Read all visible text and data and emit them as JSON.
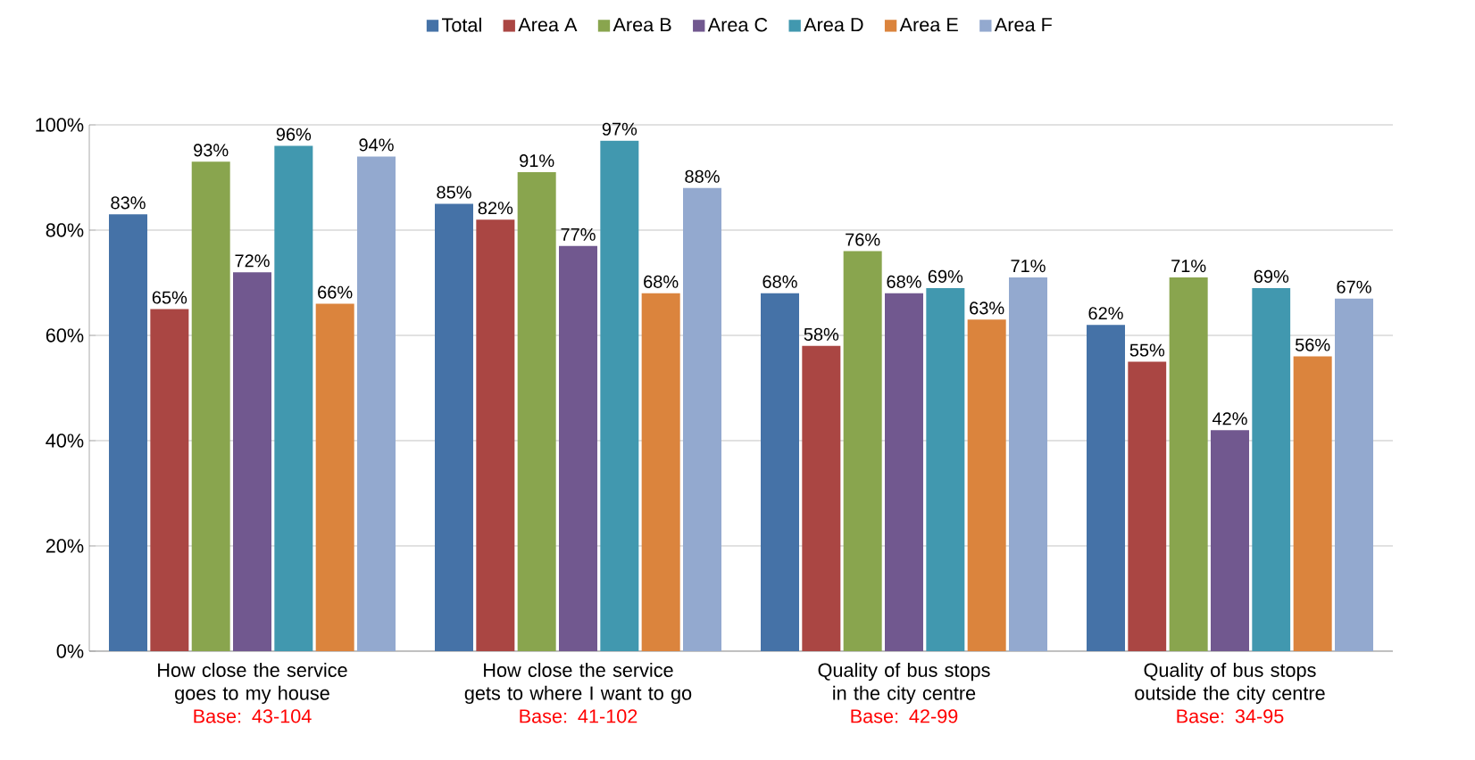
{
  "chart_data": {
    "type": "bar",
    "categories": [
      "How close the service goes to my house",
      "How close the service gets to where I want to go",
      "Quality of bus stops in the city centre",
      "Quality of bus stops outside the city centre"
    ],
    "annotations": [
      "Base: 43-104",
      "Base: 41-102",
      "Base: 42-99",
      "Base: 34-95"
    ],
    "series": [
      {
        "name": "Total",
        "color": "#4572a7",
        "values": [
          83,
          85,
          68,
          62
        ],
        "value_labels": [
          "83%",
          "85%",
          "68%",
          "62%"
        ]
      },
      {
        "name": "Area A",
        "color": "#aa4643",
        "values": [
          65,
          82,
          58,
          55
        ],
        "value_labels": [
          "65%",
          "82%",
          "58%",
          "55%"
        ]
      },
      {
        "name": "Area B",
        "color": "#89a54e",
        "values": [
          93,
          91,
          76,
          71
        ],
        "value_labels": [
          "93%",
          "91%",
          "76%",
          "71%"
        ]
      },
      {
        "name": "Area C",
        "color": "#71588f",
        "values": [
          72,
          77,
          68,
          42
        ],
        "value_labels": [
          "72%",
          "77%",
          "68%",
          "42%"
        ]
      },
      {
        "name": "Area D",
        "color": "#4198af",
        "values": [
          96,
          97,
          69,
          69
        ],
        "value_labels": [
          "96%",
          "97%",
          "69%",
          "69%"
        ]
      },
      {
        "name": "Area E",
        "color": "#db843d",
        "values": [
          66,
          68,
          63,
          56
        ],
        "value_labels": [
          "66%",
          "68%",
          "63%",
          "56%"
        ]
      },
      {
        "name": "Area F",
        "color": "#93a9cf",
        "values": [
          94,
          88,
          71,
          67
        ],
        "value_labels": [
          "94%",
          "88%",
          "71%",
          "67%"
        ]
      }
    ],
    "ylim": [
      0,
      100
    ],
    "yticks": [
      {
        "value": 0,
        "label": "0%"
      },
      {
        "value": 20,
        "label": "20%"
      },
      {
        "value": 40,
        "label": "40%"
      },
      {
        "value": 60,
        "label": "60%"
      },
      {
        "value": 80,
        "label": "80%"
      },
      {
        "value": 100,
        "label": "100%"
      }
    ],
    "grid": "y",
    "legend": "top"
  }
}
